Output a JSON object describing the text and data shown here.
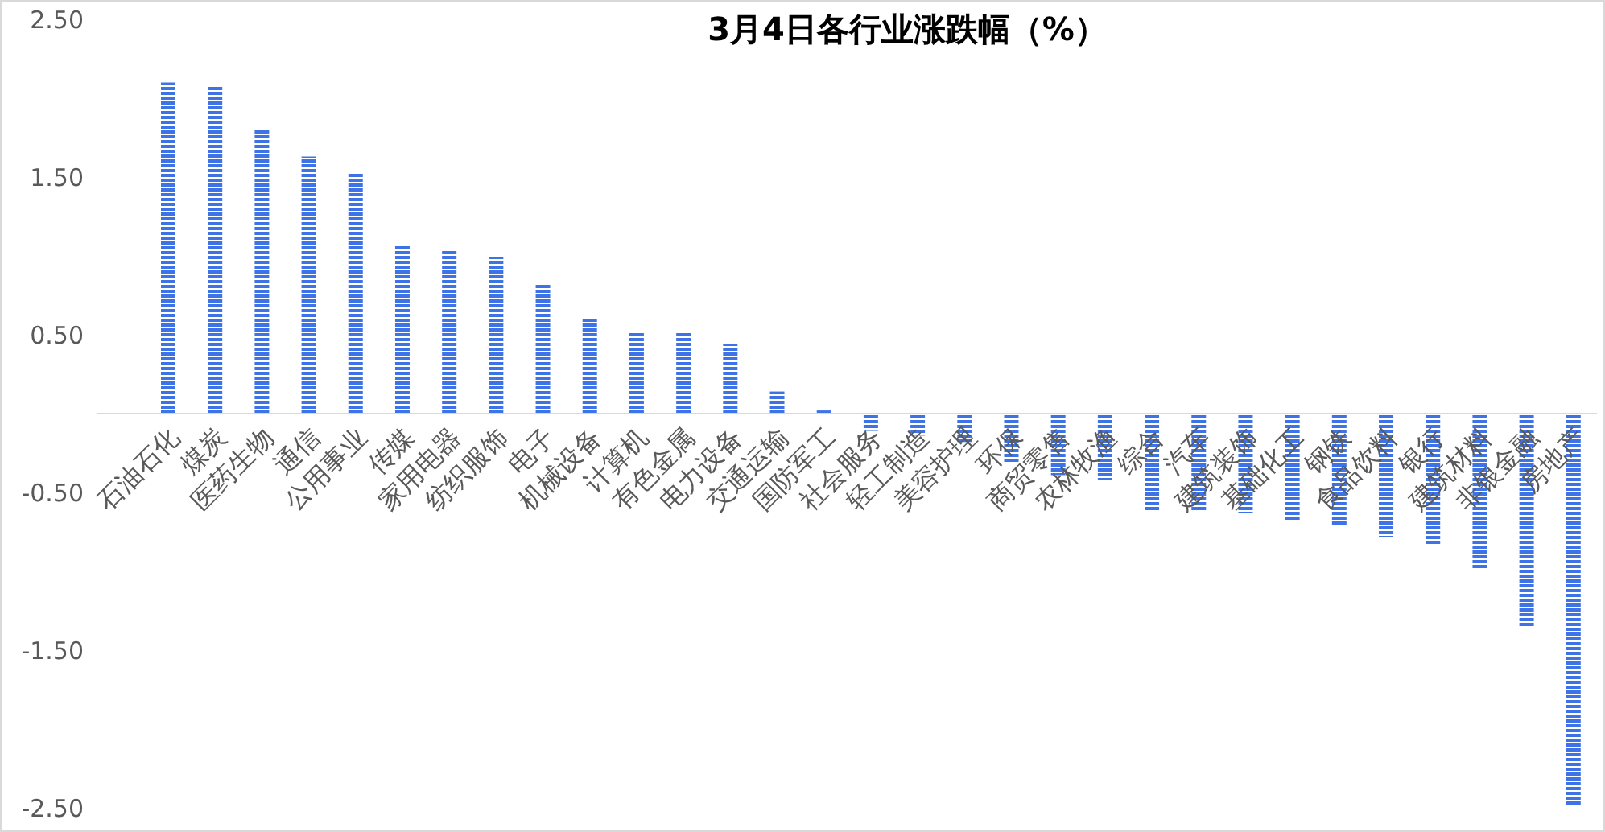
{
  "chart_data": {
    "type": "bar",
    "title": "3月4日各行业涨跌幅（%）",
    "categories": [
      "石油石化",
      "煤炭",
      "医药生物",
      "通信",
      "公用事业",
      "传媒",
      "家用电器",
      "纺织服饰",
      "电子",
      "机械设备",
      "计算机",
      "有色金属",
      "电力设备",
      "交通运输",
      "国防军工",
      "社会服务",
      "轻工制造",
      "美容护理",
      "环保",
      "商贸零售",
      "农林牧渔",
      "综合",
      "汽车",
      "建筑装饰",
      "基础化工",
      "钢铁",
      "食品饮料",
      "银行",
      "建筑材料",
      "非银金融",
      "房地产"
    ],
    "values": [
      2.1,
      2.08,
      1.8,
      1.63,
      1.53,
      1.07,
      1.04,
      0.99,
      0.82,
      0.6,
      0.52,
      0.52,
      0.44,
      0.14,
      0.02,
      -0.11,
      -0.14,
      -0.18,
      -0.31,
      -0.39,
      -0.42,
      -0.62,
      -0.62,
      -0.63,
      -0.68,
      -0.71,
      -0.78,
      -0.83,
      -0.99,
      -1.35,
      -2.48
    ],
    "color": "#3e73e8",
    "ylim": [
      -2.5,
      2.5
    ],
    "yticks": [
      {
        "value": -2.5,
        "label": "-2.50"
      },
      {
        "value": -1.5,
        "label": "-1.50"
      },
      {
        "value": -0.5,
        "label": "-0.50"
      },
      {
        "value": 0.5,
        "label": "0.50"
      },
      {
        "value": 1.5,
        "label": "1.50"
      },
      {
        "value": 2.5,
        "label": "2.50"
      }
    ]
  }
}
